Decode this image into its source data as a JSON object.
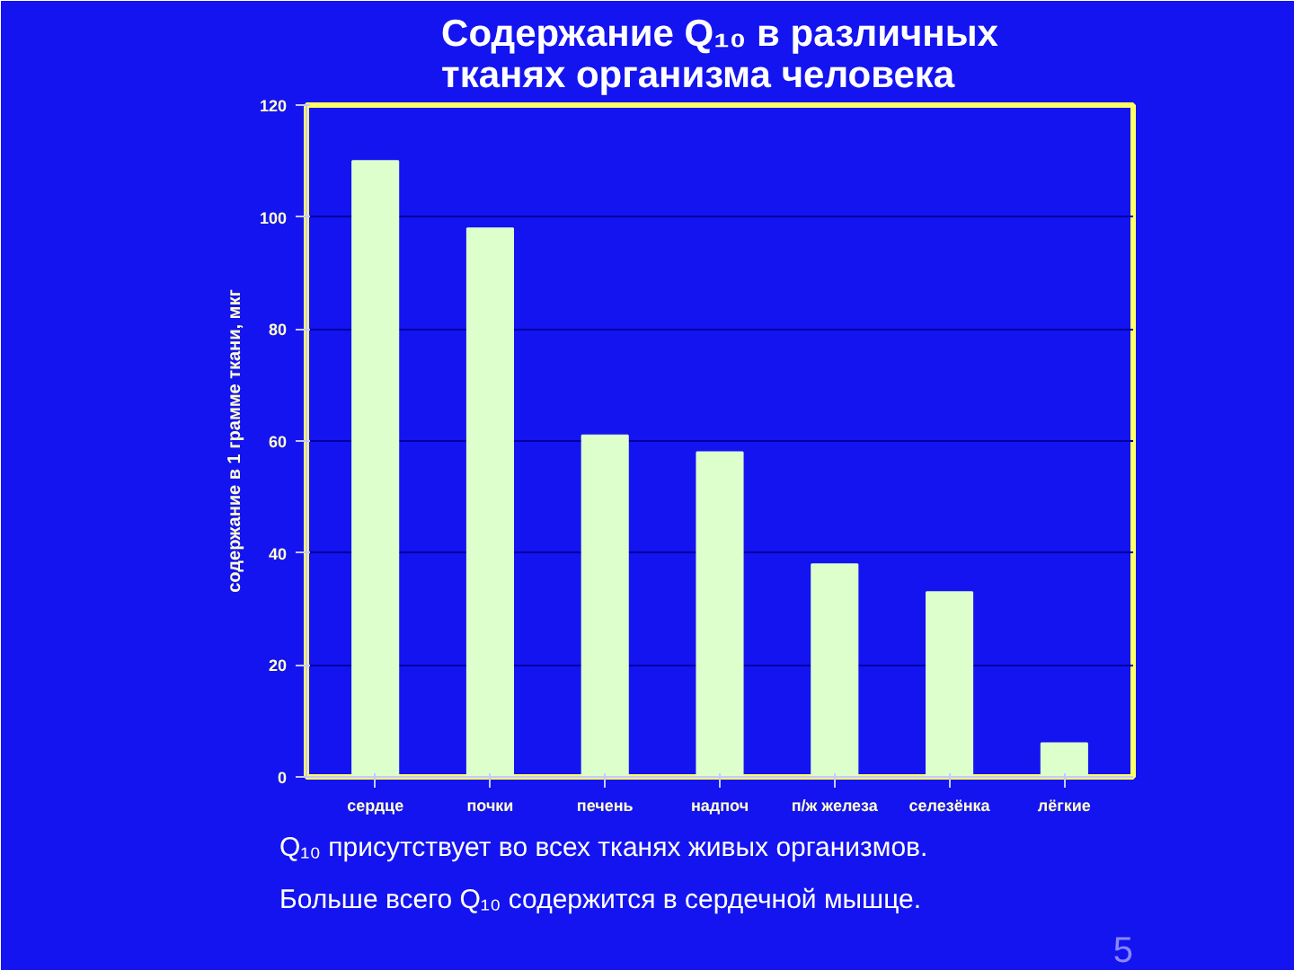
{
  "chart_data": {
    "type": "bar",
    "title": "Содержание Q₁₀ в различных\nтканях организма человека",
    "ylabel": "содержание в 1 грамме ткани, мкг",
    "categories": [
      "сердце",
      "почки",
      "печень",
      "надпоч",
      "п/ж железа",
      "селезёнка",
      "лёгкие"
    ],
    "values": [
      110,
      98,
      61,
      58,
      38,
      33,
      6
    ],
    "color": "#ddffcc",
    "ylim": [
      0,
      120
    ],
    "yticks": [
      0,
      20,
      40,
      60,
      80,
      100,
      120
    ],
    "grid": "y",
    "annotations": [
      "Q₁₀ присутствует во всех тканях живых организмов.",
      "Больше всего Q₁₀ содержится в сердечной мышце.",
      "5"
    ]
  }
}
